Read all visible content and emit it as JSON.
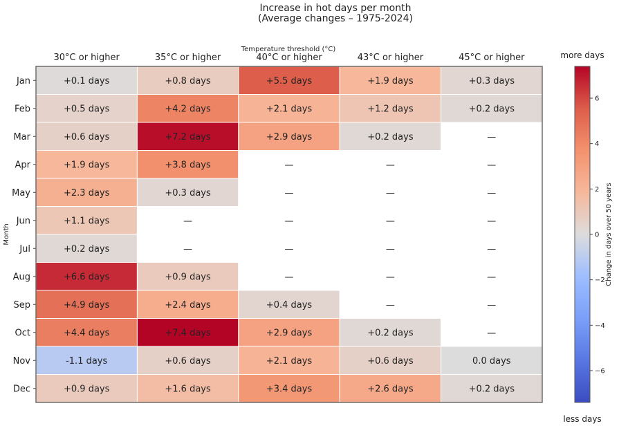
{
  "chart_data": {
    "type": "heatmap",
    "title_line1": "Increase in hot days per month",
    "title_line2": "(Average changes – 1975-2024)",
    "x_axis_title": "Temperature threshold (°C)",
    "y_axis_title": "Month",
    "columns": [
      "30°C or higher",
      "35°C or higher",
      "40°C or higher",
      "43°C or higher",
      "45°C or higher"
    ],
    "rows": [
      "Jan",
      "Feb",
      "Mar",
      "Apr",
      "May",
      "Jun",
      "Jul",
      "Aug",
      "Sep",
      "Oct",
      "Nov",
      "Dec"
    ],
    "values": [
      [
        0.1,
        0.8,
        5.5,
        1.9,
        0.3
      ],
      [
        0.5,
        4.2,
        2.1,
        1.2,
        0.2
      ],
      [
        0.6,
        7.2,
        2.9,
        0.2,
        null
      ],
      [
        1.9,
        3.8,
        null,
        null,
        null
      ],
      [
        2.3,
        0.3,
        null,
        null,
        null
      ],
      [
        1.1,
        null,
        null,
        null,
        null
      ],
      [
        0.2,
        null,
        null,
        null,
        null
      ],
      [
        6.6,
        0.9,
        null,
        null,
        null
      ],
      [
        4.9,
        2.4,
        0.4,
        null,
        null
      ],
      [
        4.4,
        7.4,
        2.9,
        0.2,
        null
      ],
      [
        -1.1,
        0.6,
        2.1,
        0.6,
        0.0
      ],
      [
        0.9,
        1.6,
        3.4,
        2.6,
        0.2
      ]
    ],
    "cell_labels": [
      [
        "+0.1 days",
        "+0.8 days",
        "+5.5 days",
        "+1.9 days",
        "+0.3 days"
      ],
      [
        "+0.5 days",
        "+4.2 days",
        "+2.1 days",
        "+1.2 days",
        "+0.2 days"
      ],
      [
        "+0.6 days",
        "+7.2 days",
        "+2.9 days",
        "+0.2 days",
        "—"
      ],
      [
        "+1.9 days",
        "+3.8 days",
        "—",
        "—",
        "—"
      ],
      [
        "+2.3 days",
        "+0.3 days",
        "—",
        "—",
        "—"
      ],
      [
        "+1.1 days",
        "—",
        "—",
        "—",
        "—"
      ],
      [
        "+0.2 days",
        "—",
        "—",
        "—",
        "—"
      ],
      [
        "+6.6 days",
        "+0.9 days",
        "—",
        "—",
        "—"
      ],
      [
        "+4.9 days",
        "+2.4 days",
        "+0.4 days",
        "—",
        "—"
      ],
      [
        "+4.4 days",
        "+7.4 days",
        "+2.9 days",
        "+0.2 days",
        "—"
      ],
      [
        "-1.1 days",
        "+0.6 days",
        "+2.1 days",
        "+0.6 days",
        "0.0 days"
      ],
      [
        "+0.9 days",
        "+1.6 days",
        "+3.4 days",
        "+2.6 days",
        "+0.2 days"
      ]
    ],
    "colorbar": {
      "range": [
        -7.4,
        7.4
      ],
      "ticks": [
        6,
        4,
        2,
        0,
        -2,
        -4,
        -6
      ],
      "tick_labels": [
        "6",
        "4",
        "2",
        "0",
        "−2",
        "−4",
        "−6"
      ],
      "label": "Change in days over 50 years",
      "top_label": "more days",
      "bottom_label": "less days",
      "colormap": "coolwarm"
    }
  }
}
